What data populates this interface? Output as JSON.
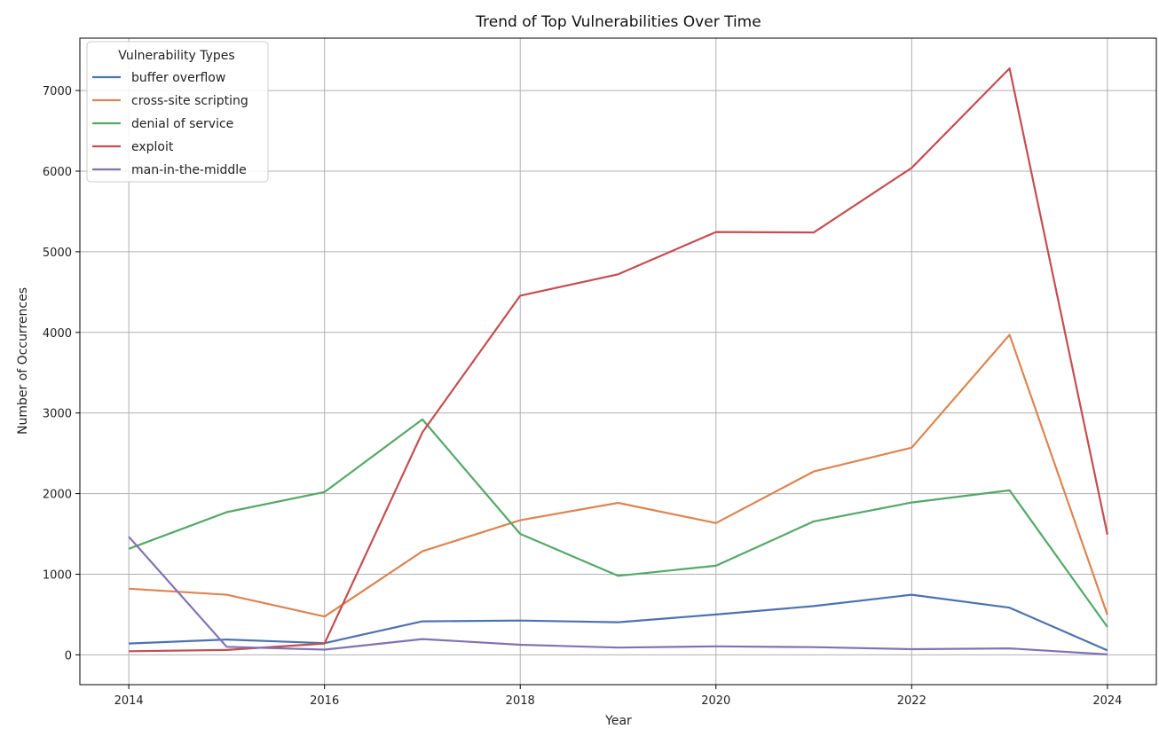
{
  "chart_data": {
    "type": "line",
    "title": "Trend of Top Vulnerabilities Over Time",
    "xlabel": "Year",
    "ylabel": "Number of Occurrences",
    "x": [
      2014,
      2015,
      2016,
      2017,
      2018,
      2019,
      2020,
      2021,
      2022,
      2023,
      2024
    ],
    "xlim": [
      2013.5,
      2024.5
    ],
    "ylim": [
      -370,
      7650
    ],
    "xticks": [
      2014,
      2016,
      2018,
      2020,
      2022,
      2024
    ],
    "yticks": [
      0,
      1000,
      2000,
      3000,
      4000,
      5000,
      6000,
      7000
    ],
    "grid": true,
    "legend": {
      "title": "Vulnerability Types",
      "placement": "top-left"
    },
    "series": [
      {
        "name": "buffer overflow",
        "color": "#4c72b0",
        "values": [
          140,
          190,
          145,
          415,
          425,
          405,
          500,
          605,
          745,
          585,
          55
        ]
      },
      {
        "name": "cross-site scripting",
        "color": "#dd8452",
        "values": [
          820,
          745,
          475,
          1285,
          1670,
          1885,
          1635,
          2275,
          2570,
          3970,
          495
        ]
      },
      {
        "name": "denial of service",
        "color": "#55a868",
        "values": [
          1315,
          1770,
          2020,
          2920,
          1500,
          980,
          1105,
          1655,
          1890,
          2040,
          345
        ]
      },
      {
        "name": "exploit",
        "color": "#c44e52",
        "values": [
          45,
          60,
          140,
          2760,
          4455,
          4720,
          5245,
          5240,
          6040,
          7275,
          1490
        ]
      },
      {
        "name": "man-in-the-middle",
        "color": "#8172b3",
        "values": [
          1465,
          100,
          65,
          195,
          125,
          90,
          105,
          95,
          70,
          80,
          5
        ]
      }
    ]
  }
}
